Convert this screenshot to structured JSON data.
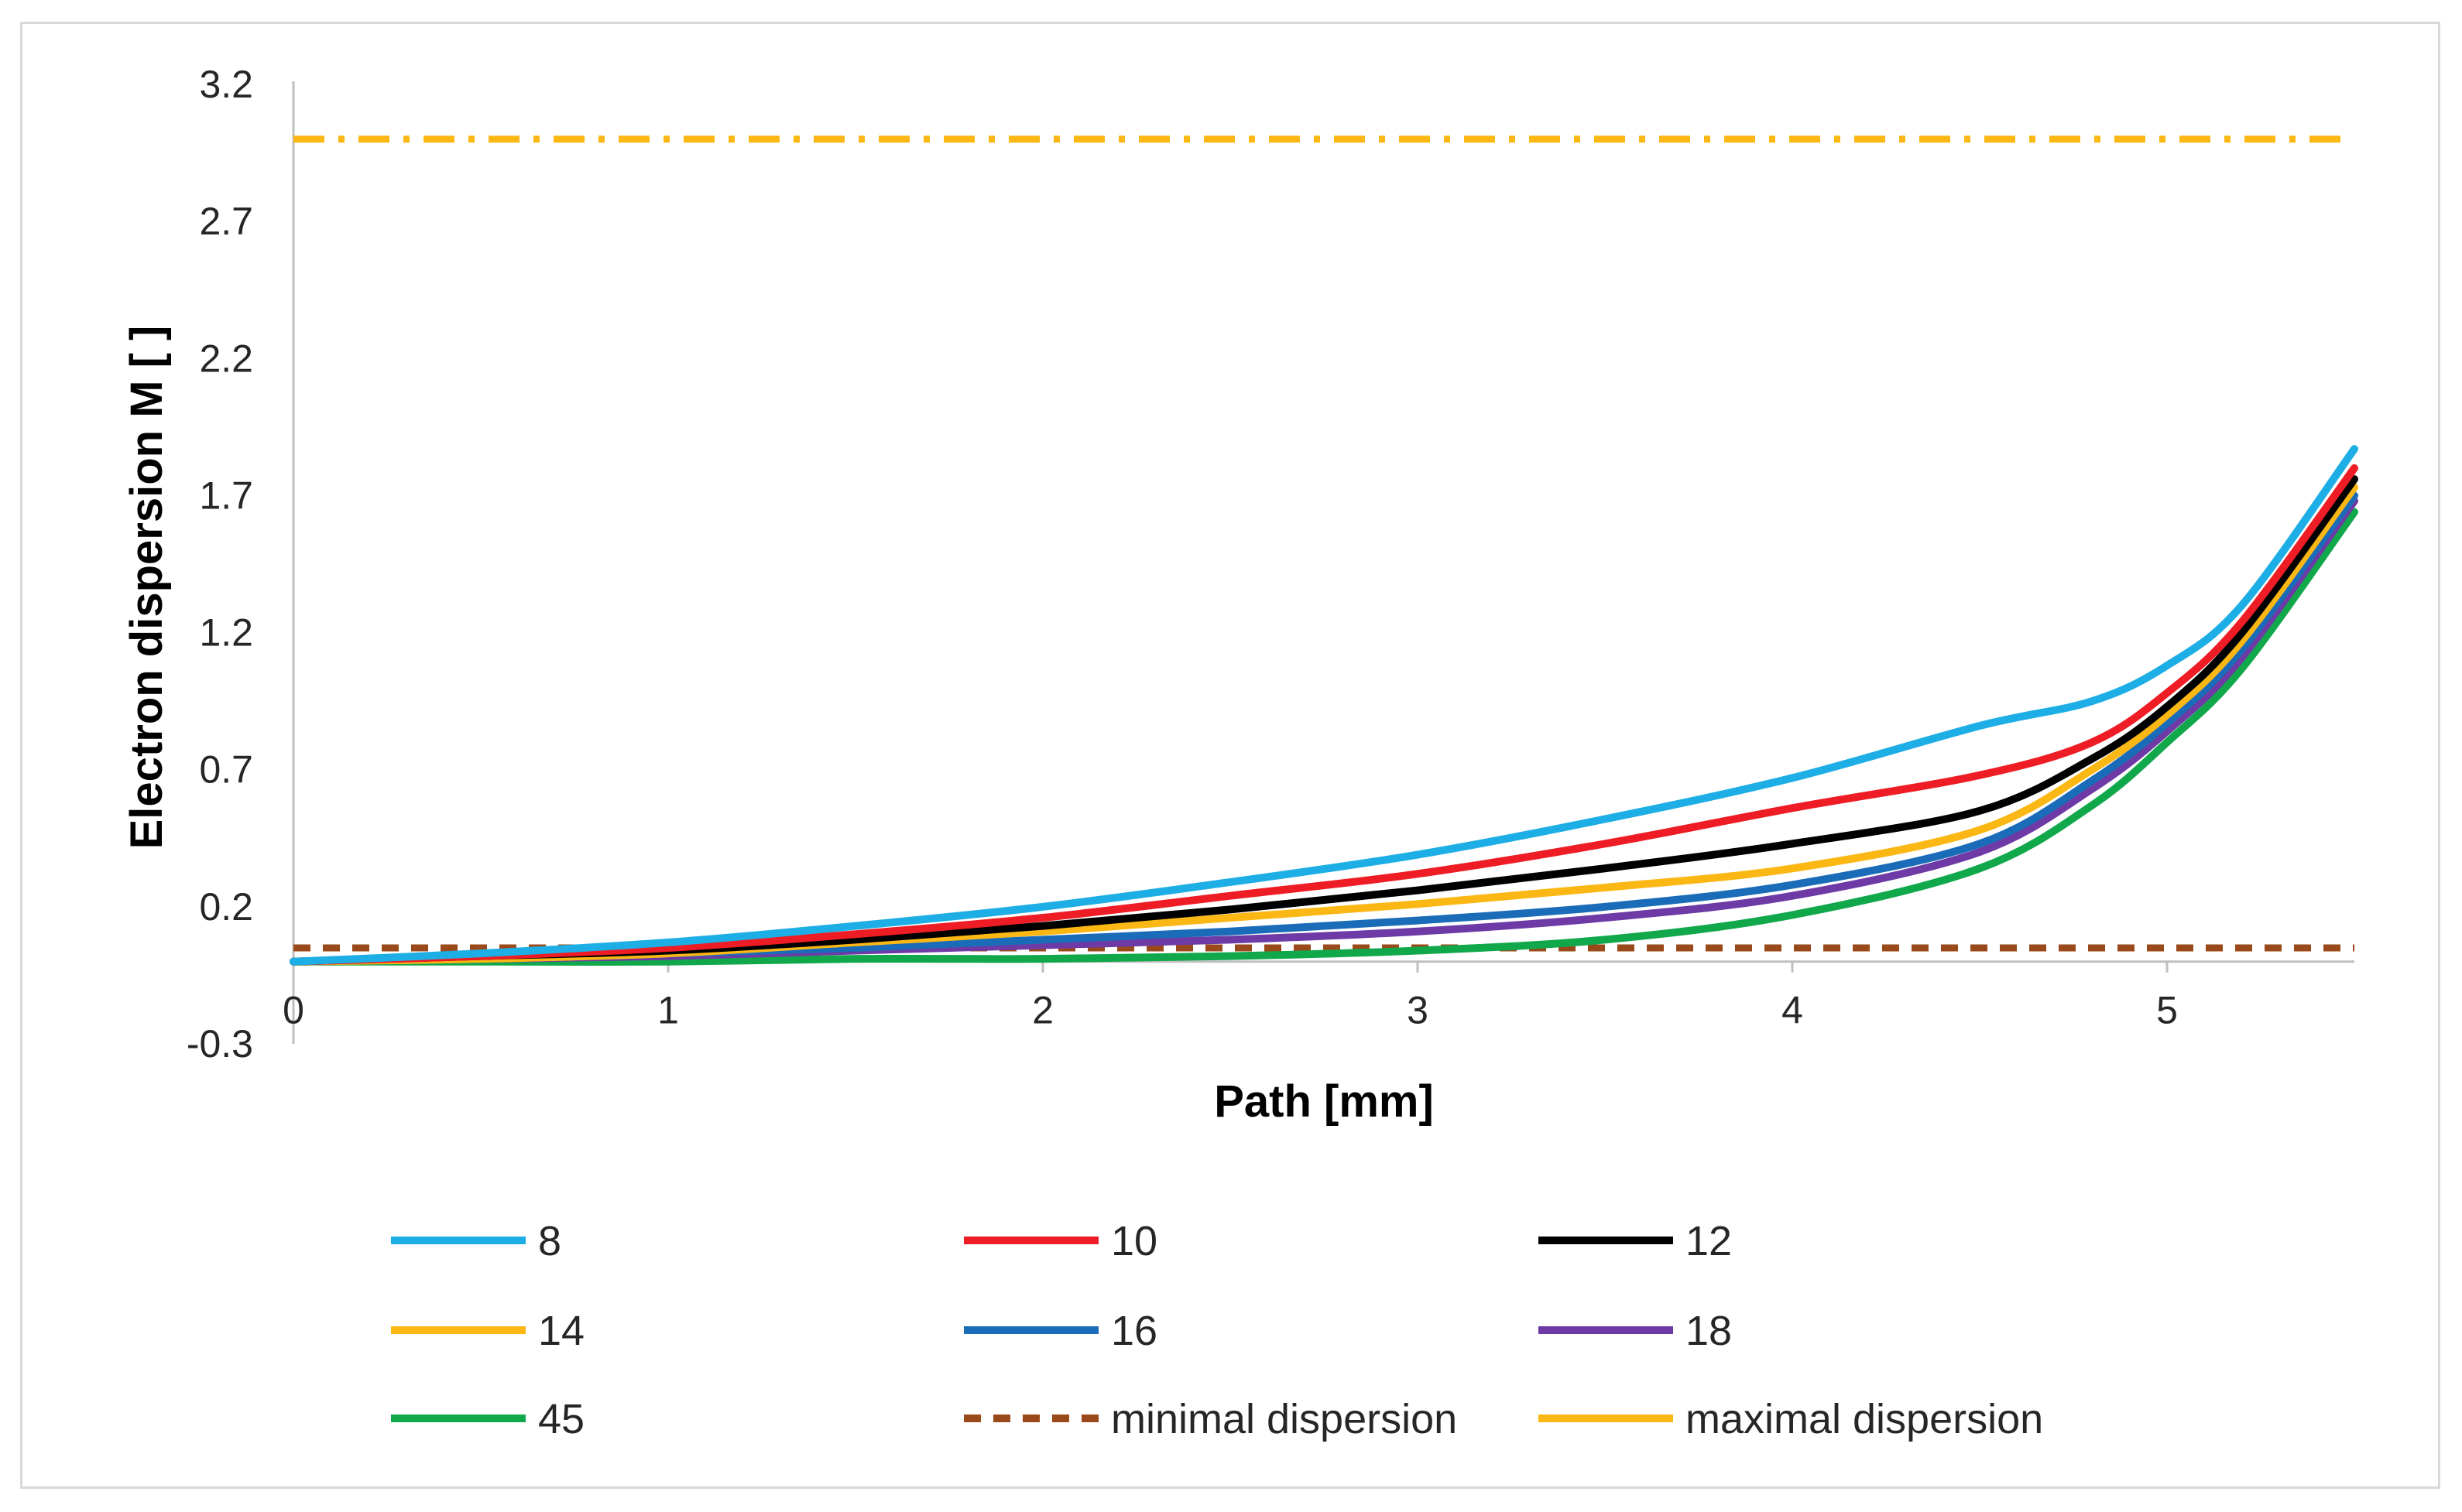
{
  "chart_data": {
    "type": "line",
    "title": "",
    "xlabel": "Path [mm]",
    "ylabel": "Electron dispersion M [ ]",
    "xlim": [
      0,
      5.5
    ],
    "ylim": [
      -0.3,
      3.2
    ],
    "x_ticks": [
      0,
      1,
      2,
      3,
      4,
      5
    ],
    "x_tick_labels": [
      "0",
      "1",
      "2",
      "3",
      "4",
      "5"
    ],
    "y_ticks": [
      -0.3,
      0.2,
      0.7,
      1.2,
      1.7,
      2.2,
      2.7,
      3.2
    ],
    "y_tick_labels": [
      "-0.3",
      "0.2",
      "0.7",
      "1.2",
      "1.7",
      "2.2",
      "2.7",
      "3.2"
    ],
    "grid": false,
    "legend_position": "bottom",
    "series": [
      {
        "name": "8",
        "color": "#1eaee6",
        "dash": "solid",
        "x": [
          0,
          0.5,
          1,
          1.5,
          2,
          2.5,
          3,
          3.5,
          4,
          4.5,
          4.8,
          5.0,
          5.2,
          5.5
        ],
        "y": [
          0.0,
          0.03,
          0.07,
          0.13,
          0.2,
          0.29,
          0.39,
          0.52,
          0.67,
          0.86,
          0.95,
          1.08,
          1.3,
          1.87
        ]
      },
      {
        "name": "10",
        "color": "#ee1c24",
        "dash": "solid",
        "x": [
          0,
          0.5,
          1,
          1.5,
          2,
          2.5,
          3,
          3.5,
          4,
          4.5,
          4.8,
          5.0,
          5.2,
          5.5
        ],
        "y": [
          0.0,
          0.02,
          0.05,
          0.1,
          0.16,
          0.24,
          0.32,
          0.43,
          0.56,
          0.68,
          0.8,
          0.98,
          1.24,
          1.8
        ]
      },
      {
        "name": "12",
        "color": "#000000",
        "dash": "solid",
        "x": [
          0,
          0.5,
          1,
          1.5,
          2,
          2.5,
          3,
          3.5,
          4,
          4.5,
          4.8,
          5.0,
          5.2,
          5.5
        ],
        "y": [
          0.0,
          0.02,
          0.04,
          0.08,
          0.13,
          0.19,
          0.26,
          0.34,
          0.43,
          0.55,
          0.74,
          0.93,
          1.2,
          1.76
        ]
      },
      {
        "name": "14",
        "color": "#fbb714",
        "dash": "solid",
        "x": [
          0,
          0.5,
          1,
          1.5,
          2,
          2.5,
          3,
          3.5,
          4,
          4.5,
          4.8,
          5.0,
          5.2,
          5.5
        ],
        "y": [
          0.0,
          0.01,
          0.03,
          0.07,
          0.11,
          0.16,
          0.21,
          0.27,
          0.34,
          0.48,
          0.7,
          0.9,
          1.17,
          1.73
        ]
      },
      {
        "name": "16",
        "color": "#1b6cb8",
        "dash": "solid",
        "x": [
          0,
          0.5,
          1,
          1.5,
          2,
          2.5,
          3,
          3.5,
          4,
          4.5,
          4.8,
          5.0,
          5.2,
          5.5
        ],
        "y": [
          0.0,
          0.01,
          0.03,
          0.05,
          0.08,
          0.11,
          0.15,
          0.2,
          0.28,
          0.43,
          0.66,
          0.87,
          1.14,
          1.7
        ]
      },
      {
        "name": "18",
        "color": "#6d3aa6",
        "dash": "solid",
        "x": [
          0,
          0.5,
          1,
          1.5,
          2,
          2.5,
          3,
          3.5,
          4,
          4.5,
          4.8,
          5.0,
          5.2,
          5.5
        ],
        "y": [
          0.0,
          0.01,
          0.02,
          0.04,
          0.06,
          0.08,
          0.11,
          0.16,
          0.24,
          0.4,
          0.63,
          0.84,
          1.11,
          1.68
        ]
      },
      {
        "name": "45",
        "color": "#11a84b",
        "dash": "solid",
        "x": [
          0,
          0.5,
          1,
          1.5,
          2,
          2.5,
          3,
          3.5,
          4,
          4.5,
          4.8,
          5.0,
          5.2,
          5.5
        ],
        "y": [
          0.0,
          0.0,
          0.0,
          0.01,
          0.01,
          0.02,
          0.04,
          0.08,
          0.17,
          0.34,
          0.57,
          0.8,
          1.07,
          1.64
        ]
      },
      {
        "name": "minimal dispersion",
        "color": "#9a4a1a",
        "dash": "dashed",
        "x": [
          0,
          5.5
        ],
        "y": [
          0.05,
          0.05
        ]
      },
      {
        "name": "maximal dispersion",
        "color": "#fbb714",
        "dash": "dashdot",
        "x": [
          0,
          5.5
        ],
        "y": [
          3.0,
          3.0
        ]
      }
    ]
  }
}
